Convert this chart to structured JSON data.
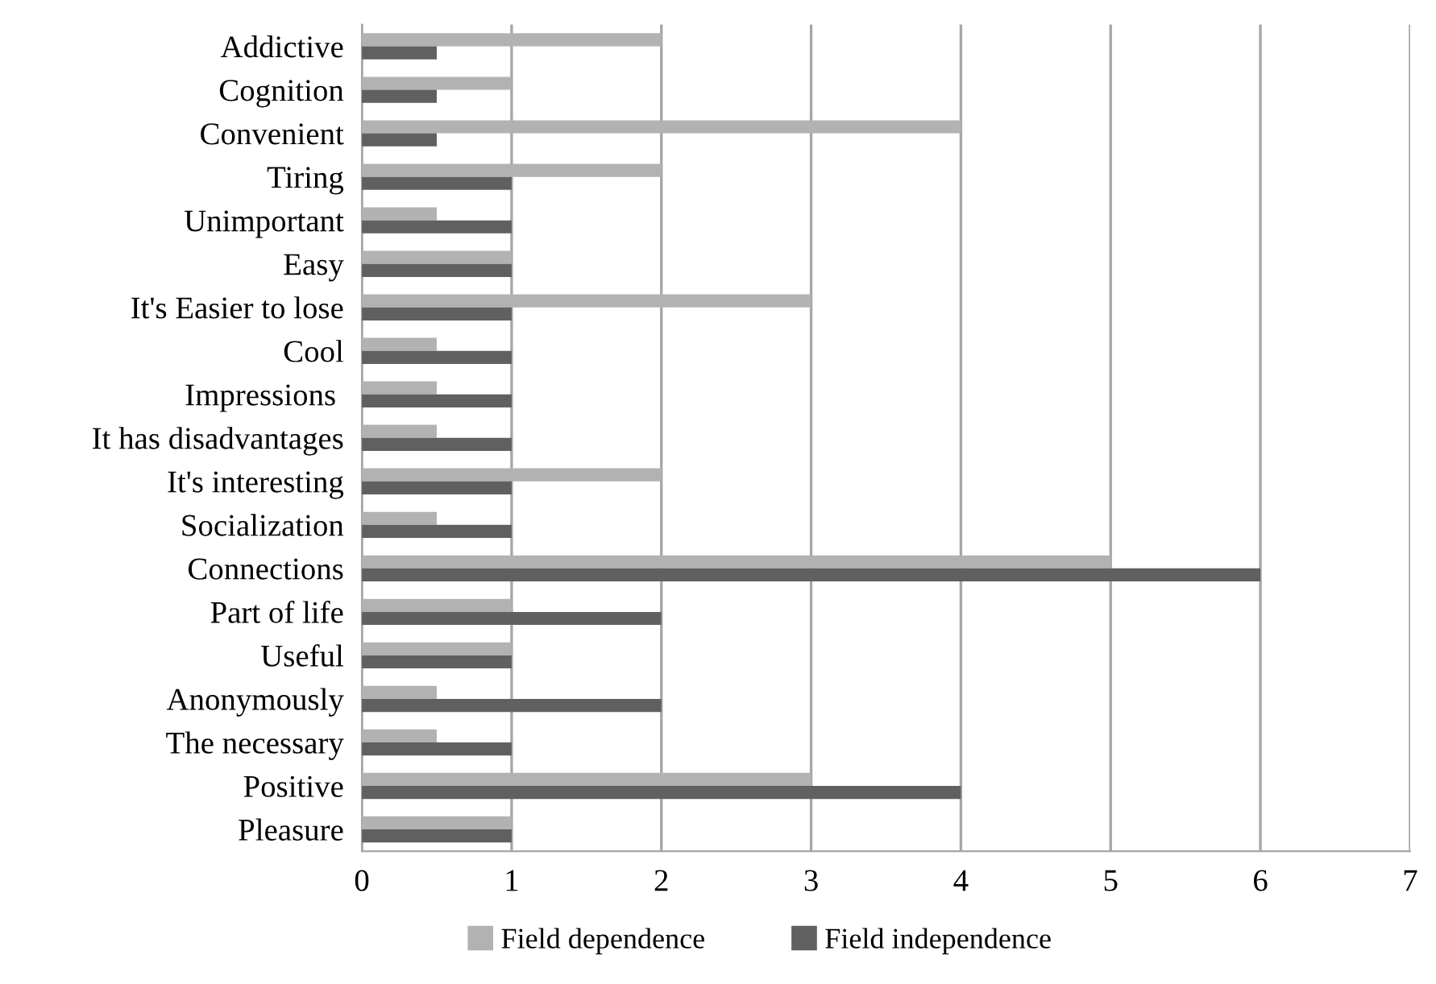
{
  "chart_data": {
    "type": "bar",
    "orientation": "horizontal",
    "categories": [
      "Addictive",
      "Cognition",
      "Convenient",
      "Tiring",
      "Unimportant",
      "Easy",
      "It's Easier to lose",
      "Cool",
      "Impressions ",
      "It has disadvantages",
      "It's interesting",
      "Socialization",
      "Connections",
      "Part of life",
      "Useful",
      "Anonymously",
      "The necessary",
      "Positive",
      "Pleasure"
    ],
    "series": [
      {
        "name": "Field dependence",
        "color": "#b2b2b2",
        "values": [
          2,
          1,
          4,
          2,
          0.5,
          1,
          3,
          0.5,
          0.5,
          0.5,
          2,
          0.5,
          5,
          1,
          1,
          0.5,
          0.5,
          3,
          1
        ]
      },
      {
        "name": "Field independence",
        "color": "#606060",
        "values": [
          0.5,
          0.5,
          0.5,
          1,
          1,
          1,
          1,
          1,
          1,
          1,
          1,
          1,
          6,
          2,
          1,
          2,
          1,
          4,
          1
        ]
      }
    ],
    "xlim": [
      0,
      7
    ],
    "xticks": [
      0,
      1,
      2,
      3,
      4,
      5,
      6,
      7
    ],
    "grid": "x",
    "legend": "bottom"
  }
}
